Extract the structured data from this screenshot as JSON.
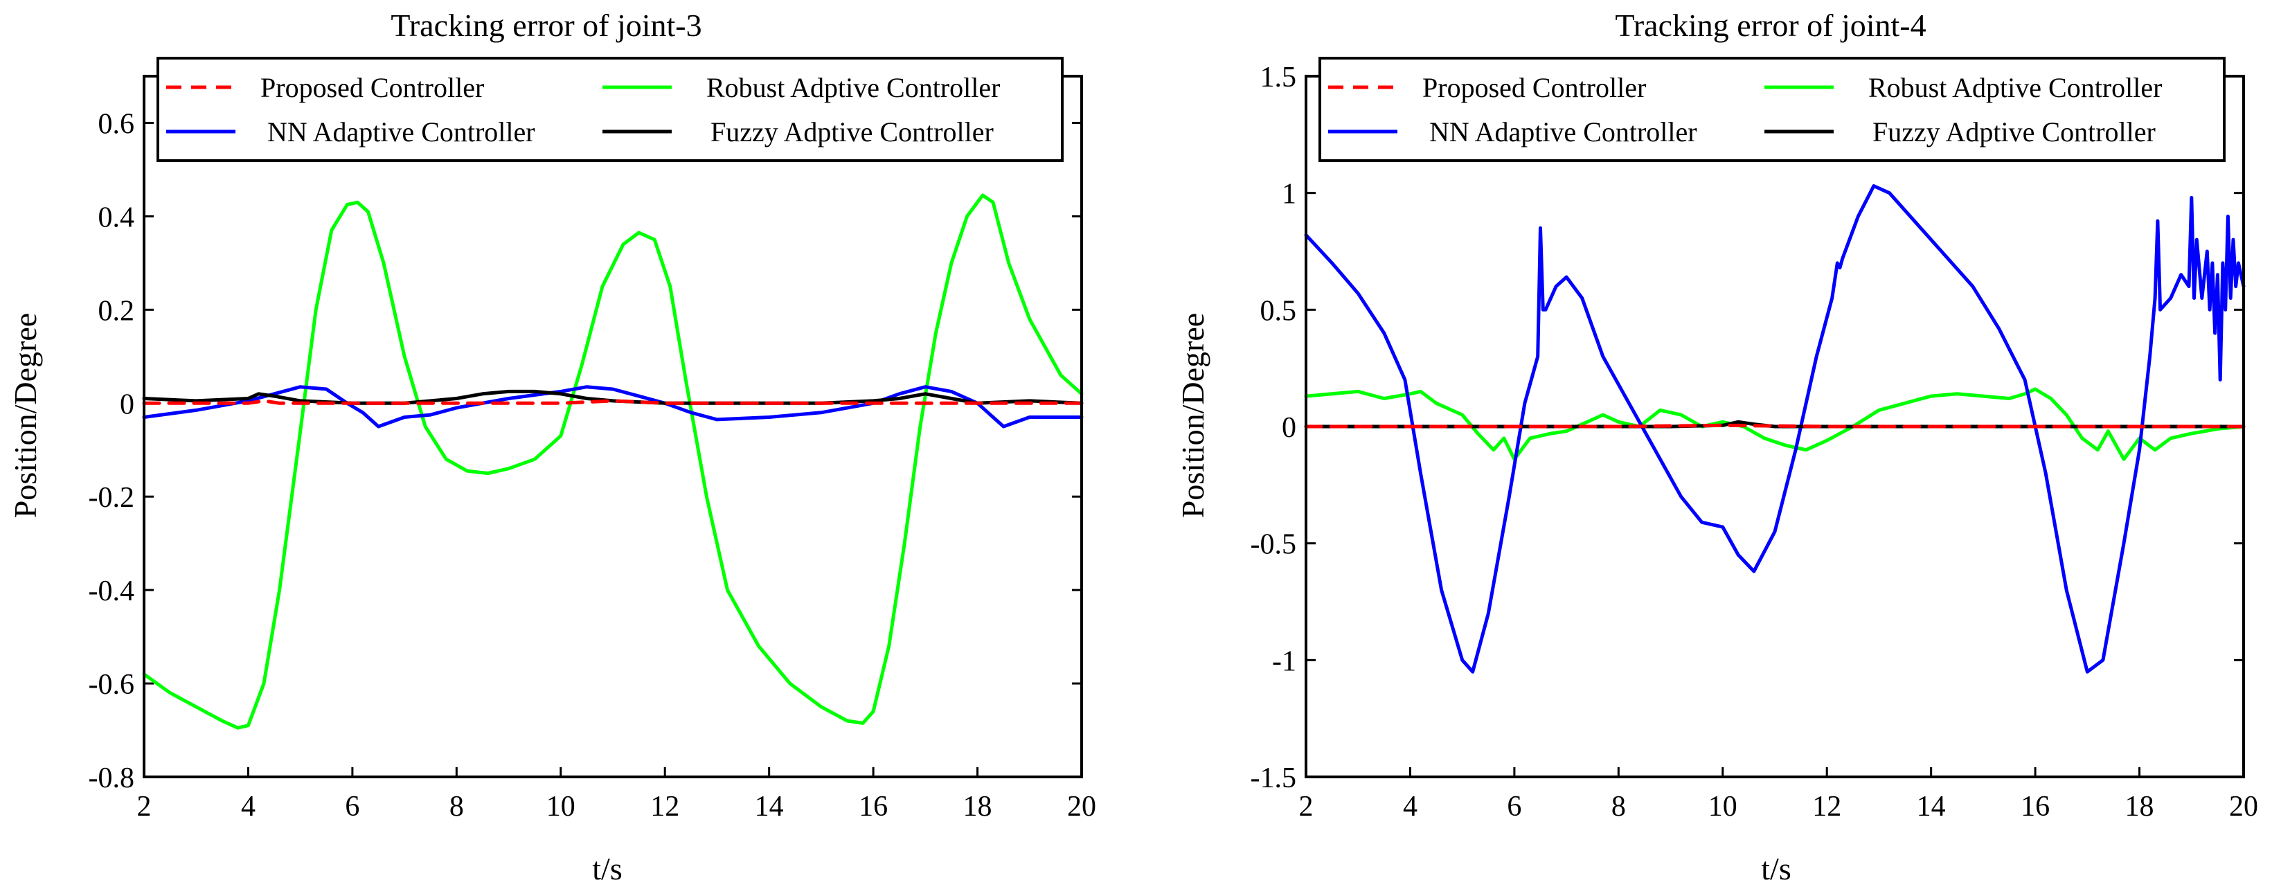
{
  "colors": {
    "proposed": "#ff0000",
    "nn": "#0000ff",
    "robust": "#00ff00",
    "fuzzy": "#000000",
    "axis": "#000000"
  },
  "chart_data": [
    {
      "type": "line",
      "title": "Tracking error of joint-3",
      "xlabel": "t/s",
      "ylabel": "Position/Degree",
      "xlim": [
        2,
        20
      ],
      "ylim": [
        -0.8,
        0.7
      ],
      "xticks": [
        2,
        4,
        6,
        8,
        10,
        12,
        14,
        16,
        18,
        20
      ],
      "yticks": [
        -0.8,
        -0.6,
        -0.4,
        -0.2,
        0,
        0.2,
        0.4,
        0.6
      ],
      "ytick_labels": [
        "-0.8",
        "-0.6",
        "-0.4",
        "-0.2",
        "0",
        "0.2",
        "0.4",
        "0.6"
      ],
      "legend": [
        {
          "key": "proposed",
          "label": "Proposed Controller",
          "dash": true
        },
        {
          "key": "robust",
          "label": "Robust Adptive Controller"
        },
        {
          "key": "nn",
          "label": "NN Adaptive Controller"
        },
        {
          "key": "fuzzy",
          "label": "Fuzzy Adptive Controller"
        }
      ],
      "series": [
        {
          "key": "robust",
          "name": "Robust Adptive Controller",
          "x": [
            2,
            2.5,
            3,
            3.5,
            3.8,
            4.0,
            4.3,
            4.6,
            5.0,
            5.3,
            5.6,
            5.9,
            6.1,
            6.3,
            6.6,
            7.0,
            7.4,
            7.8,
            8.2,
            8.6,
            9.0,
            9.5,
            10.0,
            10.4,
            10.8,
            11.2,
            11.5,
            11.8,
            12.1,
            12.4,
            12.8,
            13.2,
            13.8,
            14.4,
            15.0,
            15.5,
            15.8,
            16.0,
            16.3,
            16.6,
            16.9,
            17.2,
            17.5,
            17.8,
            18.1,
            18.3,
            18.6,
            19.0,
            19.3,
            19.6,
            20.0
          ],
          "y": [
            -0.58,
            -0.62,
            -0.65,
            -0.68,
            -0.695,
            -0.69,
            -0.6,
            -0.4,
            -0.06,
            0.2,
            0.37,
            0.425,
            0.43,
            0.41,
            0.3,
            0.1,
            -0.05,
            -0.12,
            -0.145,
            -0.15,
            -0.14,
            -0.12,
            -0.07,
            0.08,
            0.25,
            0.34,
            0.365,
            0.35,
            0.25,
            0.05,
            -0.2,
            -0.4,
            -0.52,
            -0.6,
            -0.65,
            -0.68,
            -0.685,
            -0.66,
            -0.52,
            -0.3,
            -0.05,
            0.15,
            0.3,
            0.4,
            0.445,
            0.43,
            0.3,
            0.18,
            0.12,
            0.06,
            0.02
          ]
        },
        {
          "key": "nn",
          "name": "NN Adaptive Controller",
          "x": [
            2,
            3,
            4,
            4.5,
            5.0,
            5.5,
            5.9,
            6.2,
            6.5,
            7.0,
            7.5,
            8.0,
            9.0,
            10.0,
            10.5,
            11.0,
            11.5,
            12.0,
            12.5,
            13.0,
            14.0,
            15.0,
            16.0,
            16.5,
            17.0,
            17.5,
            18.0,
            18.3,
            18.5,
            19.0,
            20.0
          ],
          "y": [
            -0.03,
            -0.015,
            0.005,
            0.02,
            0.035,
            0.03,
            0.0,
            -0.02,
            -0.05,
            -0.03,
            -0.025,
            -0.01,
            0.01,
            0.025,
            0.035,
            0.03,
            0.015,
            0.0,
            -0.02,
            -0.035,
            -0.03,
            -0.02,
            0.0,
            0.02,
            0.035,
            0.025,
            0.0,
            -0.03,
            -0.05,
            -0.03,
            -0.03
          ]
        },
        {
          "key": "fuzzy",
          "name": "Fuzzy Adptive Controller",
          "x": [
            2,
            3,
            4,
            4.2,
            4.5,
            5.0,
            6.0,
            7.0,
            8.0,
            8.5,
            9.0,
            9.5,
            10.0,
            10.5,
            11.0,
            12.0,
            13.0,
            14.0,
            15.0,
            16.0,
            16.5,
            17.0,
            17.5,
            18.0,
            19.0,
            20.0
          ],
          "y": [
            0.01,
            0.005,
            0.01,
            0.02,
            0.015,
            0.005,
            0.0,
            0.0,
            0.01,
            0.02,
            0.025,
            0.025,
            0.02,
            0.01,
            0.005,
            0.0,
            0.0,
            0.0,
            0.0,
            0.005,
            0.01,
            0.02,
            0.01,
            0.0,
            0.005,
            0.0
          ]
        },
        {
          "key": "proposed",
          "name": "Proposed Controller",
          "dash": true,
          "x": [
            2,
            3,
            4,
            4.3,
            4.6,
            5,
            6,
            7,
            8,
            9,
            10,
            11,
            12,
            13,
            14,
            15,
            16,
            17,
            18,
            19,
            20
          ],
          "y": [
            0.0,
            0.0,
            0.0,
            0.005,
            0.0,
            0.0,
            0.0,
            0.0,
            0.0,
            0.0,
            0.0,
            0.005,
            0.0,
            0.0,
            0.0,
            0.0,
            0.0,
            0.0,
            0.0,
            0.0,
            0.0
          ]
        }
      ]
    },
    {
      "type": "line",
      "title": "Tracking error of joint-4",
      "xlabel": "t/s",
      "ylabel": "Position/Degree",
      "xlim": [
        2,
        20
      ],
      "ylim": [
        -1.5,
        1.5
      ],
      "xticks": [
        2,
        4,
        6,
        8,
        10,
        12,
        14,
        16,
        18,
        20
      ],
      "yticks": [
        -1.5,
        -1,
        -0.5,
        0,
        0.5,
        1,
        1.5
      ],
      "ytick_labels": [
        "-1.5",
        "-1",
        "-0.5",
        "0",
        "0.5",
        "1",
        "1.5"
      ],
      "legend": [
        {
          "key": "proposed",
          "label": "Proposed Controller",
          "dash": true
        },
        {
          "key": "robust",
          "label": "Robust Adptive Controller"
        },
        {
          "key": "nn",
          "label": "NN Adaptive Controller"
        },
        {
          "key": "fuzzy",
          "label": "Fuzzy Adptive Controller"
        }
      ],
      "series": [
        {
          "key": "robust",
          "name": "Robust Adptive Controller",
          "x": [
            2,
            2.5,
            3,
            3.5,
            4.0,
            4.2,
            4.5,
            5.0,
            5.3,
            5.6,
            5.8,
            6.0,
            6.3,
            6.7,
            7.0,
            7.4,
            7.7,
            8.0,
            8.4,
            8.8,
            9.2,
            9.6,
            10.0,
            10.4,
            10.8,
            11.2,
            11.6,
            12.0,
            12.5,
            13.0,
            14.0,
            14.5,
            15.0,
            15.5,
            15.8,
            16.0,
            16.3,
            16.6,
            16.9,
            17.2,
            17.4,
            17.7,
            18.0,
            18.3,
            18.6,
            19.0,
            19.5,
            20.0
          ],
          "y": [
            0.13,
            0.14,
            0.15,
            0.12,
            0.14,
            0.15,
            0.1,
            0.05,
            -0.03,
            -0.1,
            -0.05,
            -0.14,
            -0.05,
            -0.03,
            -0.02,
            0.02,
            0.05,
            0.02,
            0.0,
            0.07,
            0.05,
            0.0,
            0.02,
            0.0,
            -0.05,
            -0.08,
            -0.1,
            -0.06,
            0.0,
            0.07,
            0.13,
            0.14,
            0.13,
            0.12,
            0.14,
            0.16,
            0.12,
            0.05,
            -0.05,
            -0.1,
            -0.02,
            -0.14,
            -0.05,
            -0.1,
            -0.05,
            -0.03,
            -0.01,
            0.0
          ]
        },
        {
          "key": "nn",
          "name": "NN Adaptive Controller",
          "x": [
            2,
            2.5,
            3.0,
            3.5,
            3.9,
            4.2,
            4.6,
            5.0,
            5.2,
            5.5,
            5.9,
            6.2,
            6.45,
            6.5,
            6.55,
            6.6,
            6.8,
            7.0,
            7.3,
            7.7,
            8.2,
            8.7,
            9.2,
            9.6,
            9.8,
            10.0,
            10.3,
            10.6,
            11.0,
            11.4,
            11.8,
            12.1,
            12.2,
            12.25,
            12.3,
            12.6,
            12.9,
            13.2,
            13.6,
            14.2,
            14.8,
            15.3,
            15.8,
            16.2,
            16.6,
            17.0,
            17.3,
            17.7,
            18.0,
            18.2,
            18.3,
            18.35,
            18.4,
            18.6,
            18.8,
            18.95,
            19.0,
            19.05,
            19.1,
            19.2,
            19.3,
            19.35,
            19.4,
            19.45,
            19.5,
            19.55,
            19.6,
            19.65,
            19.7,
            19.75,
            19.8,
            19.85,
            19.9,
            20.0
          ],
          "y": [
            0.82,
            0.7,
            0.57,
            0.4,
            0.2,
            -0.2,
            -0.7,
            -1.0,
            -1.05,
            -0.8,
            -0.3,
            0.1,
            0.3,
            0.85,
            0.5,
            0.5,
            0.6,
            0.64,
            0.55,
            0.3,
            0.1,
            -0.1,
            -0.3,
            -0.41,
            -0.42,
            -0.43,
            -0.55,
            -0.62,
            -0.45,
            -0.1,
            0.3,
            0.55,
            0.7,
            0.68,
            0.72,
            0.9,
            1.03,
            1.0,
            0.9,
            0.75,
            0.6,
            0.42,
            0.2,
            -0.2,
            -0.7,
            -1.05,
            -1.0,
            -0.5,
            -0.1,
            0.3,
            0.55,
            0.88,
            0.5,
            0.55,
            0.65,
            0.6,
            0.98,
            0.55,
            0.8,
            0.55,
            0.75,
            0.5,
            0.7,
            0.4,
            0.65,
            0.2,
            0.7,
            0.5,
            0.9,
            0.55,
            0.8,
            0.6,
            0.7,
            0.6
          ]
        },
        {
          "key": "fuzzy",
          "name": "Fuzzy Adptive Controller",
          "x": [
            2,
            4,
            6,
            8,
            9,
            10,
            10.3,
            10.6,
            11,
            12,
            14,
            16,
            18,
            20
          ],
          "y": [
            0.0,
            0.0,
            0.0,
            0.0,
            0.0,
            0.005,
            0.02,
            0.01,
            0.0,
            0.0,
            0.0,
            0.0,
            0.0,
            0.0
          ]
        },
        {
          "key": "proposed",
          "name": "Proposed Controller",
          "dash": true,
          "x": [
            2,
            4,
            6,
            8,
            10,
            12,
            14,
            16,
            18,
            20
          ],
          "y": [
            0.0,
            0.0,
            0.0,
            0.0,
            0.005,
            0.0,
            0.0,
            0.0,
            0.0,
            0.0
          ]
        }
      ]
    }
  ]
}
